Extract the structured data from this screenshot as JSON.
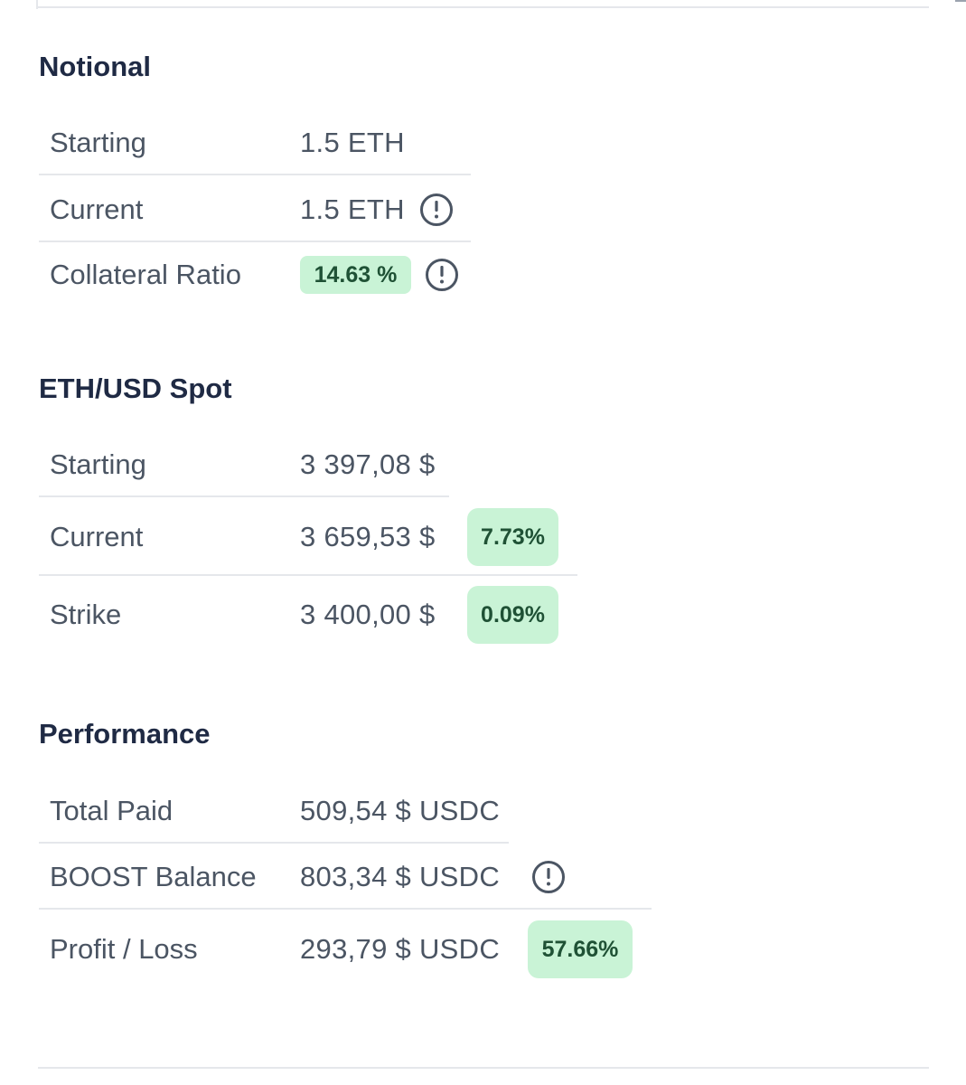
{
  "notional": {
    "title": "Notional",
    "rows": [
      {
        "label": "Starting",
        "value": "1.5 ETH"
      },
      {
        "label": "Current",
        "value": "1.5 ETH",
        "icon": "info-circle-icon"
      },
      {
        "label": "Collateral Ratio",
        "badge": "14.63 %",
        "icon": "info-circle-icon"
      }
    ]
  },
  "spot": {
    "title": "ETH/USD Spot",
    "rows": [
      {
        "label": "Starting",
        "value": "3 397,08 $"
      },
      {
        "label": "Current",
        "value": "3 659,53 $",
        "badge": "7.73%"
      },
      {
        "label": "Strike",
        "value": "3 400,00 $",
        "badge": "0.09%"
      }
    ]
  },
  "performance": {
    "title": "Performance",
    "rows": [
      {
        "label": "Total Paid",
        "value": "509,54 $ USDC"
      },
      {
        "label": "BOOST Balance",
        "value": "803,34 $ USDC",
        "icon": "info-circle-icon"
      },
      {
        "label": "Profit / Loss",
        "value": "293,79 $ USDC",
        "badge": "57.66%"
      }
    ]
  },
  "colors": {
    "badge_bg": "#c9f3d6",
    "badge_text": "#1f5135",
    "heading": "#1f2a44",
    "text": "#4b5563",
    "divider": "#e5e7eb"
  }
}
